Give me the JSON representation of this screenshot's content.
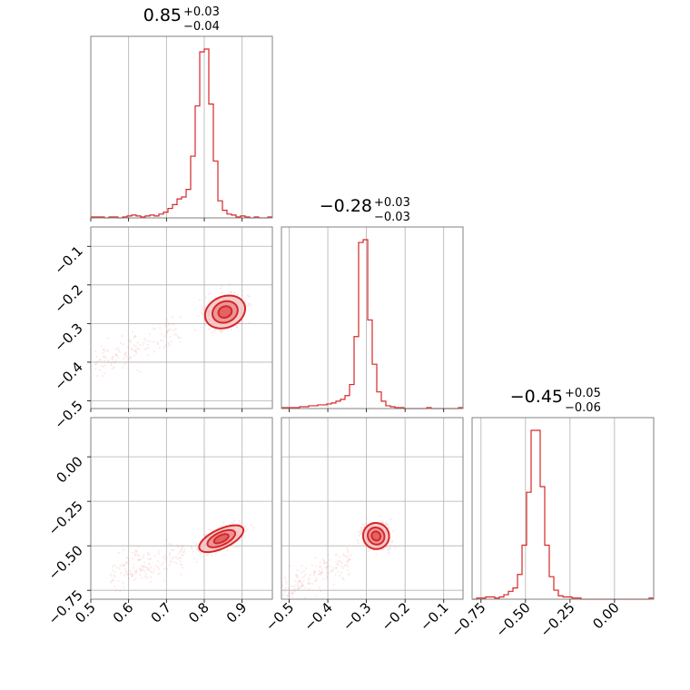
{
  "chart_data": {
    "type": "corner",
    "colors": {
      "accent": "#d62728",
      "fill_light": "#f4c3c3",
      "fill_mid": "#e98b8b",
      "fill_dark": "#e05a5a",
      "point": "#f08a8a"
    },
    "grid": true,
    "parameters": [
      {
        "range": [
          0.5,
          0.98
        ],
        "ticks": [
          0.5,
          0.6,
          0.7,
          0.8,
          0.9
        ],
        "tick_labels": [
          "0.5",
          "0.6",
          "0.7",
          "0.8",
          "0.9"
        ]
      },
      {
        "range": [
          -0.52,
          -0.05
        ],
        "ticks": [
          -0.5,
          -0.4,
          -0.3,
          -0.2,
          -0.1
        ],
        "tick_labels": [
          "−0.5",
          "−0.4",
          "−0.3",
          "−0.2",
          "−0.1"
        ]
      },
      {
        "range": [
          -0.8,
          0.22
        ],
        "ticks": [
          -0.75,
          -0.5,
          -0.25,
          0.0
        ],
        "tick_labels": [
          "−0.75",
          "−0.50",
          "−0.25",
          "0.00"
        ]
      }
    ],
    "titles": [
      {
        "median": "0.85",
        "plus": "+0.03",
        "minus": "−0.04"
      },
      {
        "median": "−0.28",
        "plus": "+0.03",
        "minus": "−0.03"
      },
      {
        "median": "−0.45",
        "plus": "+0.05",
        "minus": "−0.06"
      }
    ],
    "histograms": [
      {
        "param": 0,
        "bin_start": 0.5,
        "bin_width": 0.012,
        "counts": [
          1,
          1,
          1,
          0,
          1,
          1,
          0,
          1,
          2,
          3,
          2,
          1,
          2,
          3,
          2,
          4,
          6,
          10,
          14,
          20,
          22,
          30,
          65,
          118,
          175,
          178,
          120,
          60,
          18,
          8,
          4,
          3,
          1,
          2,
          1,
          0,
          1,
          0,
          0,
          1
        ]
      },
      {
        "param": 1,
        "bin_start": -0.52,
        "bin_width": 0.01175,
        "counts": [
          1,
          1,
          1,
          1,
          2,
          2,
          3,
          3,
          4,
          4,
          5,
          6,
          8,
          10,
          14,
          26,
          78,
          180,
          183,
          96,
          48,
          18,
          8,
          3,
          2,
          1,
          1,
          0,
          0,
          0,
          0,
          0,
          1,
          0,
          0,
          0,
          0,
          0,
          0,
          1
        ]
      },
      {
        "param": 2,
        "bin_start": -0.8,
        "bin_width": 0.0255,
        "counts": [
          0,
          1,
          1,
          2,
          2,
          1,
          2,
          4,
          7,
          10,
          22,
          48,
          95,
          150,
          150,
          100,
          48,
          20,
          8,
          3,
          2,
          2,
          1,
          1,
          0,
          0,
          0,
          0,
          0,
          0,
          0,
          0,
          0,
          0,
          0,
          0,
          0,
          0,
          0,
          1
        ]
      }
    ],
    "pair_plots": [
      {
        "x_param": 0,
        "y_param": 1,
        "center": [
          0.855,
          -0.27
        ],
        "dir": [
          0.088,
          0.036
        ],
        "sig_major": 1.0,
        "sig_minor": 0.012,
        "tail": {
          "from": 0.74,
          "to": 0.45,
          "dy_per_dx": 0.42
        }
      },
      {
        "x_param": 0,
        "y_param": 2,
        "center": [
          0.845,
          -0.46
        ],
        "dir": [
          0.1,
          0.1
        ],
        "sig_major": 1.0,
        "sig_minor": 0.016,
        "tail": {
          "from": 0.75,
          "to": 0.55,
          "dy_per_dx": 0.25
        }
      },
      {
        "x_param": 1,
        "y_param": 2,
        "center": [
          -0.275,
          -0.445
        ],
        "dir": [
          0.045,
          0.08
        ],
        "sig_major": 1.0,
        "sig_minor": 0.022,
        "tail": {
          "from": -0.34,
          "to": -0.52,
          "dy_per_dx": 0.3
        }
      }
    ]
  }
}
